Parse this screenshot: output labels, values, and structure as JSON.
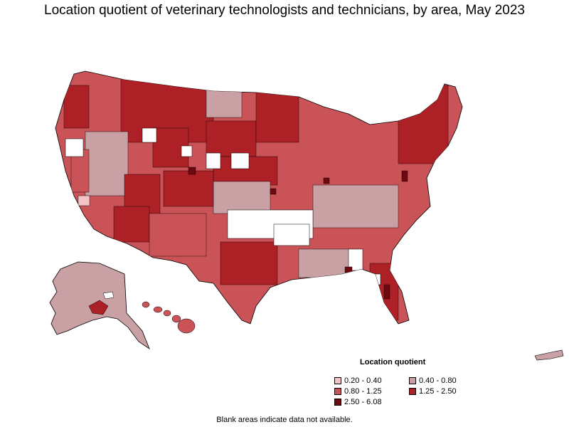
{
  "title": "Location quotient of veterinary technologists and technicians, by area, May 2023",
  "colors": {
    "c1": "#f2c4c8",
    "c2": "#c9a0a4",
    "c3": "#c95357",
    "c4": "#ad2026",
    "c5": "#6e0a0f",
    "blank": "#ffffff",
    "border": "#000000"
  },
  "legend": {
    "title": "Location quotient",
    "items": [
      {
        "label": "0.20 - 0.40",
        "color": "#f2c4c8"
      },
      {
        "label": "0.40 - 0.80",
        "color": "#c9a0a4"
      },
      {
        "label": "0.80 - 1.25",
        "color": "#c95357"
      },
      {
        "label": "1.25 - 2.50",
        "color": "#ad2026"
      },
      {
        "label": "2.50 - 6.08",
        "color": "#6e0a0f"
      }
    ]
  },
  "note": "Blank areas indicate data not available."
}
